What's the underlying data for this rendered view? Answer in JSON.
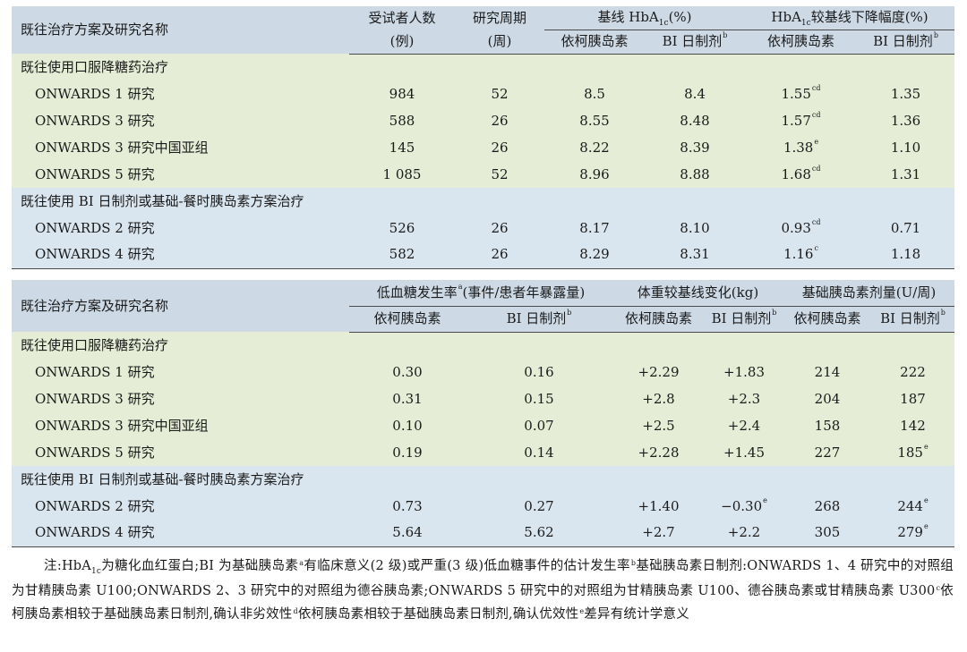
{
  "table1": {
    "header": {
      "name": "既往治疗方案及研究名称",
      "subjects_line1": "受试者人数",
      "subjects_line2": "(例)",
      "period_line1": "研究周期",
      "period_line2": "(周)",
      "baseline_pre": "基线 HbA",
      "baseline_sub": "1c",
      "baseline_post": "(%)",
      "decrease_pre": "HbA",
      "decrease_sub": "1c",
      "decrease_post": "较基线下降幅度(%)",
      "icodec": "依柯胰岛素",
      "bi": "BI 日制剂",
      "bi_sup": "b"
    },
    "groups": [
      {
        "title": "既往使用口服降糖药治疗",
        "rows": [
          {
            "name": "ONWARDS 1 研究",
            "subjects": "984",
            "weeks": "52",
            "base_icodec": "8.5",
            "base_bi": "8.4",
            "dec_icodec": "1.55",
            "dec_icodec_sup": "cd",
            "dec_bi": "1.35"
          },
          {
            "name": "ONWARDS 3 研究",
            "subjects": "588",
            "weeks": "26",
            "base_icodec": "8.55",
            "base_bi": "8.48",
            "dec_icodec": "1.57",
            "dec_icodec_sup": "cd",
            "dec_bi": "1.36"
          },
          {
            "name": "ONWARDS 3 研究中国亚组",
            "subjects": "145",
            "weeks": "26",
            "base_icodec": "8.22",
            "base_bi": "8.39",
            "dec_icodec": "1.38",
            "dec_icodec_sup": "e",
            "dec_bi": "1.10"
          },
          {
            "name": "ONWARDS 5 研究",
            "subjects": "1 085",
            "weeks": "52",
            "base_icodec": "8.96",
            "base_bi": "8.88",
            "dec_icodec": "1.68",
            "dec_icodec_sup": "cd",
            "dec_bi": "1.31"
          }
        ]
      },
      {
        "title": "既往使用 BI 日制剂或基础-餐时胰岛素方案治疗",
        "rows": [
          {
            "name": "ONWARDS 2 研究",
            "subjects": "526",
            "weeks": "26",
            "base_icodec": "8.17",
            "base_bi": "8.10",
            "dec_icodec": "0.93",
            "dec_icodec_sup": "cd",
            "dec_bi": "0.71"
          },
          {
            "name": "ONWARDS 4 研究",
            "subjects": "582",
            "weeks": "26",
            "base_icodec": "8.29",
            "base_bi": "8.31",
            "dec_icodec": "1.16",
            "dec_icodec_sup": "c",
            "dec_bi": "1.18"
          }
        ]
      }
    ]
  },
  "table2": {
    "header": {
      "name": "既往治疗方案及研究名称",
      "hypo_pre": "低血糖发生率",
      "hypo_sup": "a",
      "hypo_post": "(事件/患者年暴露量)",
      "weight": "体重较基线变化(kg)",
      "dose": "基础胰岛素剂量(U/周)",
      "icodec": "依柯胰岛素",
      "bi": "BI 日制剂",
      "bi_sup": "b"
    },
    "groups": [
      {
        "title": "既往使用口服降糖药治疗",
        "rows": [
          {
            "name": "ONWARDS 1 研究",
            "hypo_icodec": "0.30",
            "hypo_bi": "0.16",
            "w_icodec": "+2.29",
            "w_bi": "+1.83",
            "w_bi_sup": "",
            "d_icodec": "214",
            "d_bi": "222",
            "d_bi_sup": ""
          },
          {
            "name": "ONWARDS 3 研究",
            "hypo_icodec": "0.31",
            "hypo_bi": "0.15",
            "w_icodec": "+2.8",
            "w_bi": "+2.3",
            "w_bi_sup": "",
            "d_icodec": "204",
            "d_bi": "187",
            "d_bi_sup": ""
          },
          {
            "name": "ONWARDS 3 研究中国亚组",
            "hypo_icodec": "0.10",
            "hypo_bi": "0.07",
            "w_icodec": "+2.5",
            "w_bi": "+2.4",
            "w_bi_sup": "",
            "d_icodec": "158",
            "d_bi": "142",
            "d_bi_sup": ""
          },
          {
            "name": "ONWARDS 5 研究",
            "hypo_icodec": "0.19",
            "hypo_bi": "0.14",
            "w_icodec": "+2.28",
            "w_bi": "+1.45",
            "w_bi_sup": "",
            "d_icodec": "227",
            "d_bi": "185",
            "d_bi_sup": "e"
          }
        ]
      },
      {
        "title": "既往使用 BI 日制剂或基础-餐时胰岛素方案治疗",
        "rows": [
          {
            "name": "ONWARDS 2 研究",
            "hypo_icodec": "0.73",
            "hypo_bi": "0.27",
            "w_icodec": "+1.40",
            "w_bi": "−0.30",
            "w_bi_sup": "e",
            "d_icodec": "268",
            "d_bi": "244",
            "d_bi_sup": "e"
          },
          {
            "name": "ONWARDS 4 研究",
            "hypo_icodec": "5.64",
            "hypo_bi": "5.62",
            "w_icodec": "+2.7",
            "w_bi": "+2.2",
            "w_bi_sup": "",
            "d_icodec": "305",
            "d_bi": "279",
            "d_bi_sup": "e"
          }
        ]
      }
    ]
  },
  "notes": {
    "n0": "注:HbA",
    "n0_sub": "1c",
    "n1": "为糖化血红蛋白;BI 为基础胰岛素",
    "n1_sup": "a",
    "n2": "有临床意义(2 级)或严重(3 级)低血糖事件的估计发生率",
    "n2_sup": "b",
    "n3": "基础胰岛素日制剂:ONWARDS 1、4 研究中的对照组为甘精胰岛素 U100;ONWARDS 2、3 研究中的对照组为德谷胰岛素;ONWARDS 5 研究中的对照组为甘精胰岛素 U100、德谷胰岛素或甘精胰岛素 U300",
    "n3_sup": "c",
    "n4": "依柯胰岛素相较于基础胰岛素日制剂,确认非劣效性",
    "n4_sup": "d",
    "n5": "依柯胰岛素相较于基础胰岛素日制剂,确认优效性",
    "n5_sup": "e",
    "n6": "差异有统计学意义"
  }
}
